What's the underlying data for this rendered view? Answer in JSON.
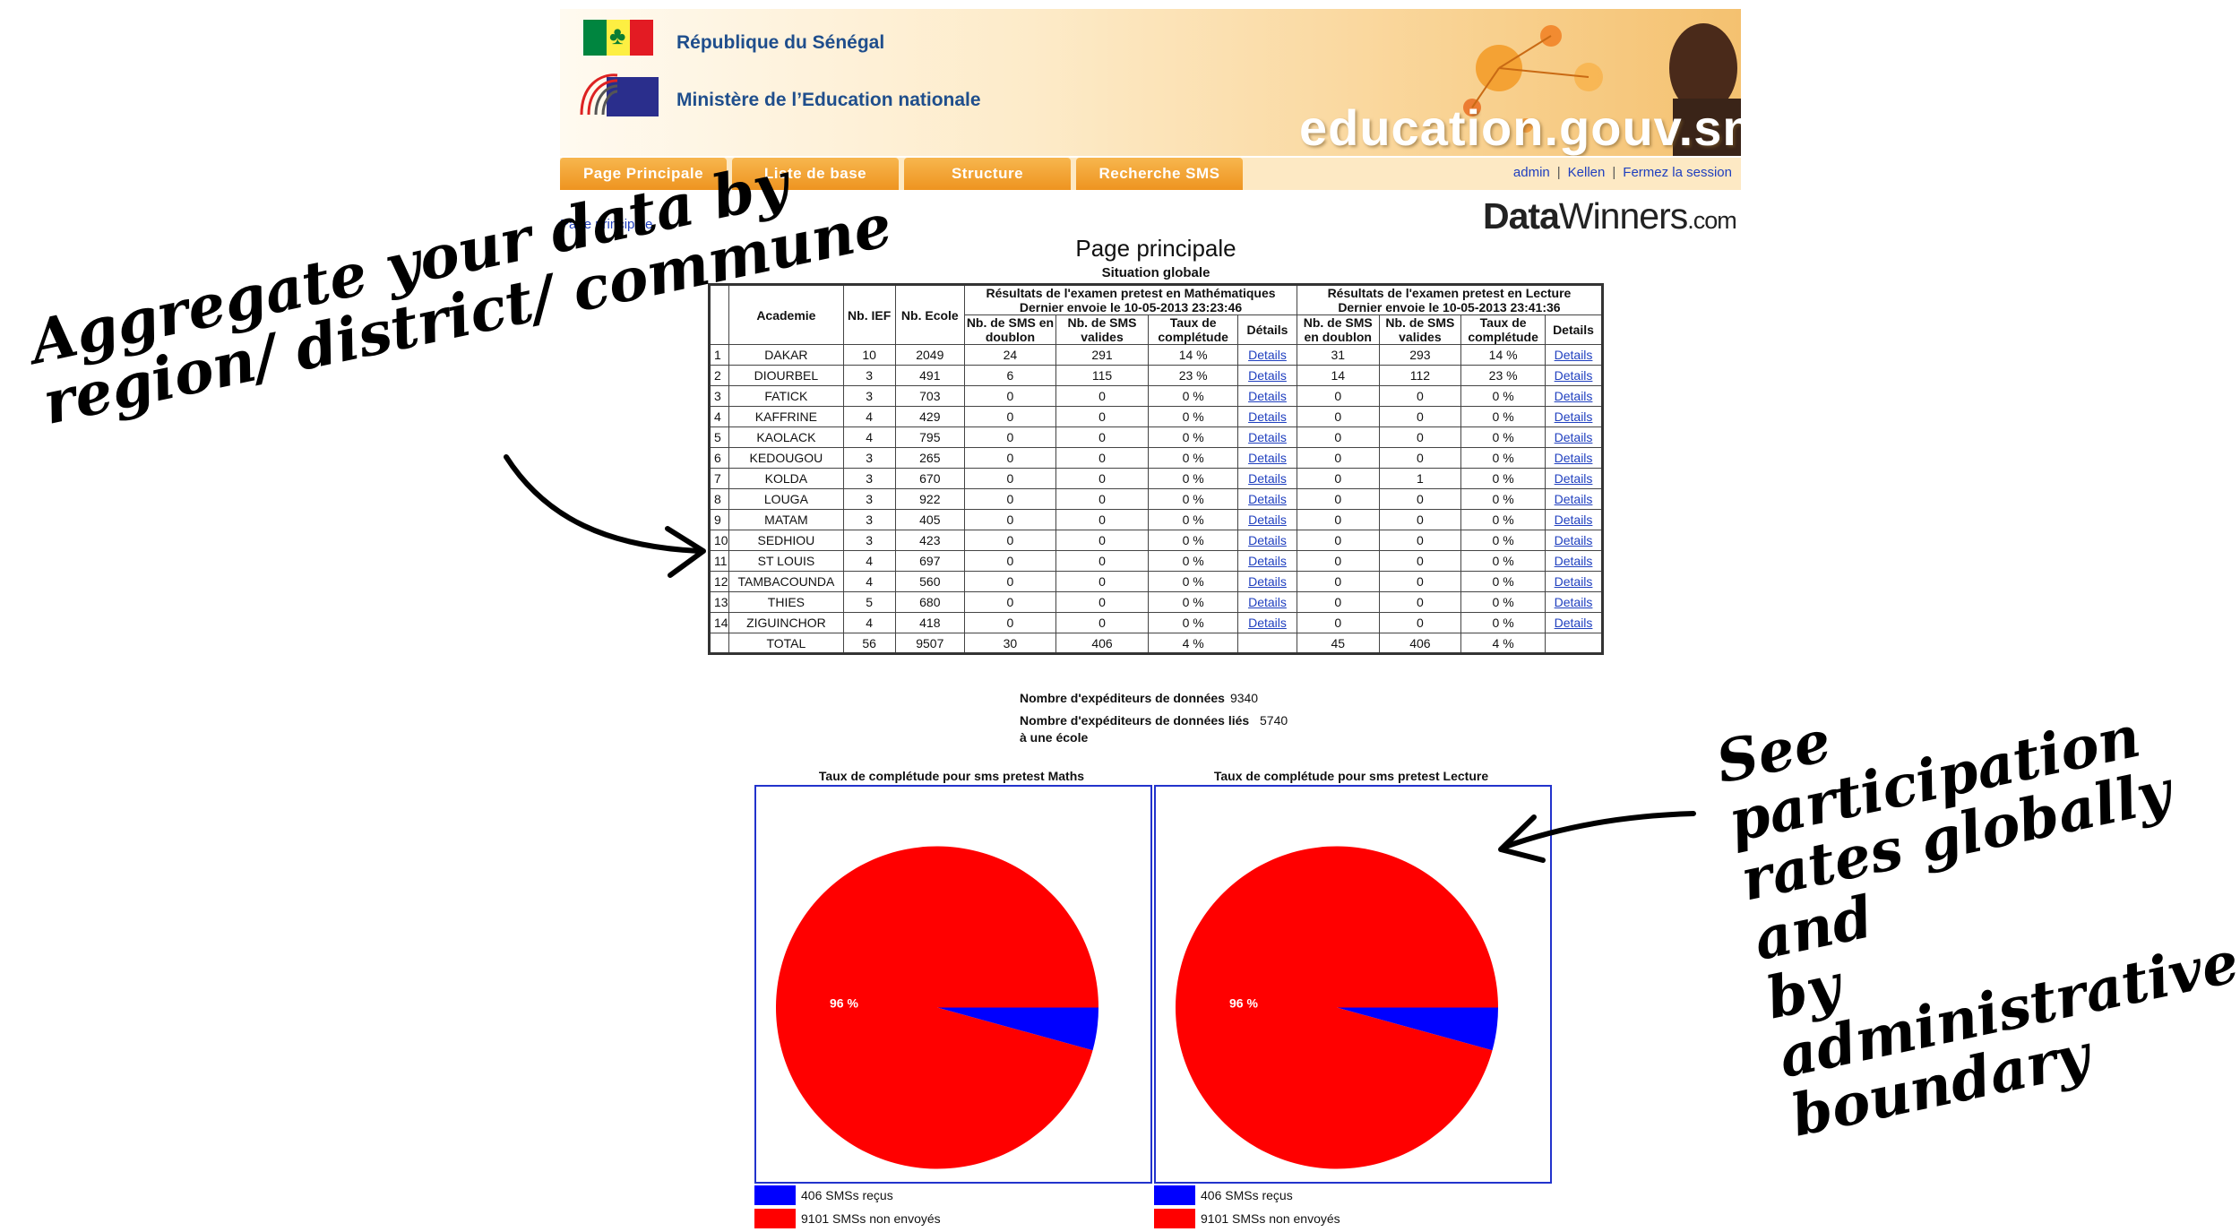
{
  "header": {
    "country": "République du Sénégal",
    "ministry": "Ministère de l’Education nationale",
    "site": "education.gouv.sn"
  },
  "nav": {
    "tabs": [
      "Page Principale",
      "Liste de base",
      "Structure",
      "Recherche SMS"
    ],
    "user": "admin",
    "name": "Kellen",
    "logout": "Fermez la session"
  },
  "breadcrumb": "Page principale",
  "brand": {
    "data": "Data",
    "winners": "Winners",
    "com": ".com"
  },
  "page": {
    "title": "Page principale",
    "subtitle": "Situation globale"
  },
  "table": {
    "headers": {
      "academie": "Academie",
      "nb_ief": "Nb. IEF",
      "nb_ecole": "Nb. Ecole",
      "math_group": "Résultats de l'examen pretest en Mathématiques",
      "math_date": "Dernier envoie le 10-05-2013 23:23:46",
      "lecture_group": "Résultats de l'examen pretest en Lecture",
      "lecture_date": "Dernier envoie le 10-05-2013 23:41:36",
      "sms_doublon": "Nb. de SMS en doublon",
      "sms_valides": "Nb. de SMS valides",
      "taux": "Taux de complétude",
      "details": "Détails",
      "details2": "Details"
    },
    "rows": [
      [
        "1",
        "DAKAR",
        "10",
        "2049",
        "24",
        "291",
        "14 %",
        "Details",
        "31",
        "293",
        "14 %",
        "Details"
      ],
      [
        "2",
        "DIOURBEL",
        "3",
        "491",
        "6",
        "115",
        "23 %",
        "Details",
        "14",
        "112",
        "23 %",
        "Details"
      ],
      [
        "3",
        "FATICK",
        "3",
        "703",
        "0",
        "0",
        "0 %",
        "Details",
        "0",
        "0",
        "0 %",
        "Details"
      ],
      [
        "4",
        "KAFFRINE",
        "4",
        "429",
        "0",
        "0",
        "0 %",
        "Details",
        "0",
        "0",
        "0 %",
        "Details"
      ],
      [
        "5",
        "KAOLACK",
        "4",
        "795",
        "0",
        "0",
        "0 %",
        "Details",
        "0",
        "0",
        "0 %",
        "Details"
      ],
      [
        "6",
        "KEDOUGOU",
        "3",
        "265",
        "0",
        "0",
        "0 %",
        "Details",
        "0",
        "0",
        "0 %",
        "Details"
      ],
      [
        "7",
        "KOLDA",
        "3",
        "670",
        "0",
        "0",
        "0 %",
        "Details",
        "0",
        "1",
        "0 %",
        "Details"
      ],
      [
        "8",
        "LOUGA",
        "3",
        "922",
        "0",
        "0",
        "0 %",
        "Details",
        "0",
        "0",
        "0 %",
        "Details"
      ],
      [
        "9",
        "MATAM",
        "3",
        "405",
        "0",
        "0",
        "0 %",
        "Details",
        "0",
        "0",
        "0 %",
        "Details"
      ],
      [
        "10",
        "SEDHIOU",
        "3",
        "423",
        "0",
        "0",
        "0 %",
        "Details",
        "0",
        "0",
        "0 %",
        "Details"
      ],
      [
        "11",
        "ST LOUIS",
        "4",
        "697",
        "0",
        "0",
        "0 %",
        "Details",
        "0",
        "0",
        "0 %",
        "Details"
      ],
      [
        "12",
        "TAMBACOUNDA",
        "4",
        "560",
        "0",
        "0",
        "0 %",
        "Details",
        "0",
        "0",
        "0 %",
        "Details"
      ],
      [
        "13",
        "THIES",
        "5",
        "680",
        "0",
        "0",
        "0 %",
        "Details",
        "0",
        "0",
        "0 %",
        "Details"
      ],
      [
        "14",
        "ZIGUINCHOR",
        "4",
        "418",
        "0",
        "0",
        "0 %",
        "Details",
        "0",
        "0",
        "0 %",
        "Details"
      ]
    ],
    "total": [
      "",
      "TOTAL",
      "56",
      "9507",
      "30",
      "406",
      "4 %",
      "",
      "45",
      "406",
      "4 %",
      ""
    ]
  },
  "stats": {
    "senders_label": "Nombre d'expéditeurs de données",
    "senders_value": "9340",
    "linked_label": "Nombre d'expéditeurs de données liés à une école",
    "linked_value": "5740"
  },
  "chart_data": [
    {
      "type": "pie",
      "title": "Taux de complétude pour sms pretest Maths",
      "categories": [
        "406 SMSs reçus",
        "9101 SMSs non envoyés"
      ],
      "values": [
        406,
        9101
      ],
      "colors": [
        "#0000ff",
        "#ff0000"
      ],
      "slice_label": "96 %"
    },
    {
      "type": "pie",
      "title": "Taux de complétude pour sms pretest Lecture",
      "categories": [
        "406 SMSs reçus",
        "9101 SMSs non envoyés"
      ],
      "values": [
        406,
        9101
      ],
      "colors": [
        "#0000ff",
        "#ff0000"
      ],
      "slice_label": "96 %"
    }
  ],
  "annotations": {
    "left_line1": "Aggregate your data by",
    "left_line2": "region/ district/ commune",
    "right_line1": "See participation",
    "right_line2": "rates globally and",
    "right_line3": "by administrative",
    "right_line4": "boundary"
  },
  "colors": {
    "nav_orange": "#f0a030",
    "link_blue": "#1f3fbf",
    "pie_red": "#ff0000",
    "pie_blue": "#0000ff"
  }
}
